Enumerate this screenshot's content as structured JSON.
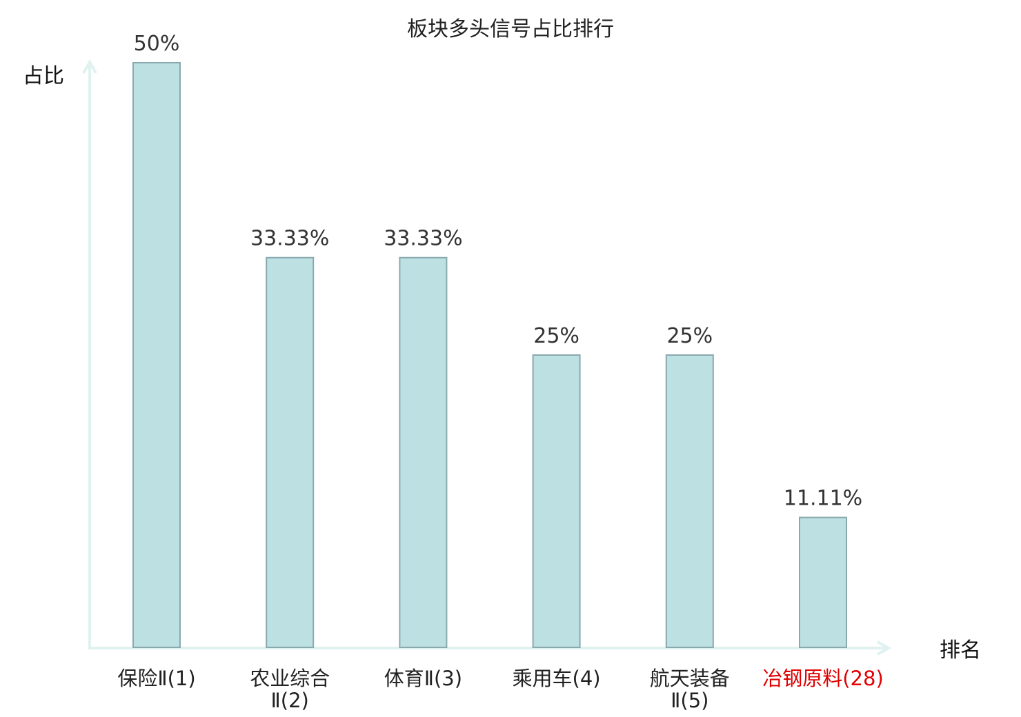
{
  "chart_data": {
    "type": "bar",
    "title": "板块多头信号占比排行",
    "xlabel": "排名",
    "ylabel": "占比",
    "categories": [
      {
        "name": "保险Ⅱ",
        "rank": "(1)",
        "lines": [
          "保险Ⅱ(1)"
        ],
        "highlight": false
      },
      {
        "name": "农业综合Ⅱ",
        "rank": "(2)",
        "lines": [
          "农业综合",
          "Ⅱ(2)"
        ],
        "highlight": false
      },
      {
        "name": "体育Ⅱ",
        "rank": "(3)",
        "lines": [
          "体育Ⅱ(3)"
        ],
        "highlight": false
      },
      {
        "name": "乘用车",
        "rank": "(4)",
        "lines": [
          "乘用车(4)"
        ],
        "highlight": false
      },
      {
        "name": "航天装备Ⅱ",
        "rank": "(5)",
        "lines": [
          "航天装备",
          "Ⅱ(5)"
        ],
        "highlight": false
      },
      {
        "name": "冶钢原料",
        "rank": "(28)",
        "lines": [
          "冶钢原料(28)"
        ],
        "highlight": true
      }
    ],
    "values": [
      50,
      33.33,
      33.33,
      25,
      25,
      11.11
    ],
    "value_labels": [
      "50%",
      "33.33%",
      "33.33%",
      "25%",
      "25%",
      "11.11%"
    ],
    "ylim": [
      0,
      50
    ],
    "grid": false,
    "legend": "none"
  },
  "colors": {
    "bar_fill": "#bde0e3",
    "bar_stroke": "#8aa9ad",
    "axis": "#dff2f0",
    "highlight_text": "#e00000",
    "text": "#222222"
  }
}
